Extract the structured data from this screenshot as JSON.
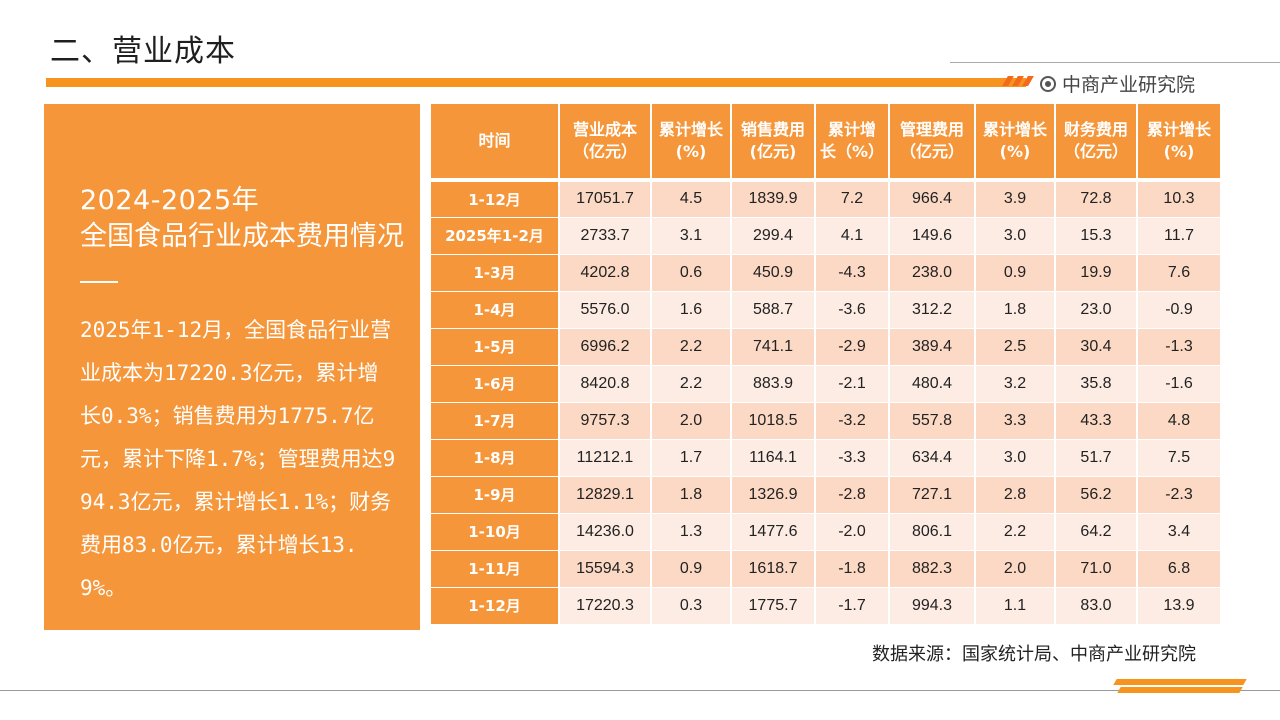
{
  "header": {
    "title": "二、营业成本",
    "brand": "中商产业研究院",
    "brand_icon": "target-icon",
    "accent_color": "#f7941d"
  },
  "panel": {
    "year": "2024-2025年",
    "subtitle": "全国食品行业成本费用情况",
    "description": "2025年1-12月，全国食品行业营业成本为17220.3亿元，累计增长0.3%；销售费用为1775.7亿元，累计下降1.7%；管理费用达994.3亿元，累计增长1.1%；财务费用83.0亿元，累计增长13.9%。"
  },
  "table": {
    "headers": [
      [
        "时间"
      ],
      [
        "营业成本",
        "（亿元）"
      ],
      [
        "累计增长",
        "(%)"
      ],
      [
        "销售费用",
        "(亿元)"
      ],
      [
        "累计增",
        "长（%）"
      ],
      [
        "管理费用",
        "（亿元）"
      ],
      [
        "累计增长",
        "(%)"
      ],
      [
        "财务费用",
        "（亿元）"
      ],
      [
        "累计增长",
        "(%)"
      ]
    ],
    "rows": [
      [
        "1-12月",
        "17051.7",
        "4.5",
        "1839.9",
        "7.2",
        "966.4",
        "3.9",
        "72.8",
        "10.3"
      ],
      [
        "2025年1-2月",
        "2733.7",
        "3.1",
        "299.4",
        "4.1",
        "149.6",
        "3.0",
        "15.3",
        "11.7"
      ],
      [
        "1-3月",
        "4202.8",
        "0.6",
        "450.9",
        "-4.3",
        "238.0",
        "0.9",
        "19.9",
        "7.6"
      ],
      [
        "1-4月",
        "5576.0",
        "1.6",
        "588.7",
        "-3.6",
        "312.2",
        "1.8",
        "23.0",
        "-0.9"
      ],
      [
        "1-5月",
        "6996.2",
        "2.2",
        "741.1",
        "-2.9",
        "389.4",
        "2.5",
        "30.4",
        "-1.3"
      ],
      [
        "1-6月",
        "8420.8",
        "2.2",
        "883.9",
        "-2.1",
        "480.4",
        "3.2",
        "35.8",
        "-1.6"
      ],
      [
        "1-7月",
        "9757.3",
        "2.0",
        "1018.5",
        "-3.2",
        "557.8",
        "3.3",
        "43.3",
        "4.8"
      ],
      [
        "1-8月",
        "11212.1",
        "1.7",
        "1164.1",
        "-3.3",
        "634.4",
        "3.0",
        "51.7",
        "7.5"
      ],
      [
        "1-9月",
        "12829.1",
        "1.8",
        "1326.9",
        "-2.8",
        "727.1",
        "2.8",
        "56.2",
        "-2.3"
      ],
      [
        "1-10月",
        "14236.0",
        "1.3",
        "1477.6",
        "-2.0",
        "806.1",
        "2.2",
        "64.2",
        "3.4"
      ],
      [
        "1-11月",
        "15594.3",
        "0.9",
        "1618.7",
        "-1.8",
        "882.3",
        "2.0",
        "71.0",
        "6.8"
      ],
      [
        "1-12月",
        "17220.3",
        "0.3",
        "1775.7",
        "-1.7",
        "994.3",
        "1.1",
        "83.0",
        "13.9"
      ]
    ]
  },
  "footer": {
    "source": "数据来源：国家统计局、中商产业研究院"
  }
}
